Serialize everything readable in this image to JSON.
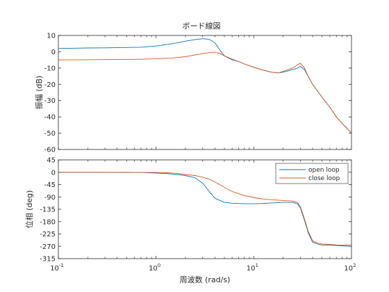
{
  "chart_data": {
    "type": "line",
    "title": "ボード線図",
    "xlabel": "周波数 (rad/s)",
    "x_scale": "log",
    "xlim": [
      0.1,
      100
    ],
    "x_ticks": [
      {
        "value": 0.1,
        "base": "10",
        "exp": "-1"
      },
      {
        "value": 1,
        "base": "10",
        "exp": "0"
      },
      {
        "value": 10,
        "base": "10",
        "exp": "1"
      },
      {
        "value": 100,
        "base": "10",
        "exp": "2"
      }
    ],
    "colors": {
      "open": "#0072BD",
      "close": "#D95319"
    },
    "legend_position": "top-right",
    "panels": [
      {
        "id": "magnitude",
        "ylabel": "振幅 (dB)",
        "ylim": [
          -60,
          10
        ],
        "yticks": [
          10,
          0,
          -10,
          -20,
          -30,
          -40,
          -50,
          -60
        ],
        "series": [
          {
            "name": "open loop",
            "color": "#0072BD",
            "x": [
              0.1,
              0.15,
              0.2,
              0.3,
              0.5,
              0.7,
              1.0,
              1.5,
              2.0,
              2.5,
              3.0,
              3.5,
              4.0,
              4.5,
              5.0,
              6.0,
              7.0,
              8.0,
              10,
              12,
              15,
              18,
              20,
              25,
              28,
              30,
              33,
              36,
              40,
              50,
              60,
              70,
              80,
              90,
              100
            ],
            "y": [
              2.0,
              2.2,
              2.3,
              2.4,
              2.6,
              2.8,
              3.5,
              5.0,
              6.5,
              7.5,
              8.0,
              7.6,
              5.5,
              1.0,
              -2.5,
              -5.0,
              -6.0,
              -7.5,
              -9.5,
              -11.0,
              -12.5,
              -13.0,
              -12.5,
              -11.0,
              -10.0,
              -9.0,
              -11.0,
              -15.0,
              -20.0,
              -28.0,
              -34.0,
              -40.0,
              -44.0,
              -47.0,
              -50.0
            ]
          },
          {
            "name": "close loop",
            "color": "#D95319",
            "x": [
              0.1,
              0.15,
              0.2,
              0.3,
              0.5,
              0.7,
              1.0,
              1.5,
              2.0,
              2.5,
              3.0,
              3.5,
              4.0,
              4.5,
              5.0,
              6.0,
              7.0,
              8.0,
              10,
              12,
              15,
              18,
              20,
              25,
              28,
              30,
              33,
              36,
              40,
              50,
              60,
              70,
              80,
              90,
              100
            ],
            "y": [
              -5.0,
              -5.0,
              -4.9,
              -4.8,
              -4.7,
              -4.6,
              -4.4,
              -3.8,
              -3.0,
              -2.0,
              -1.2,
              -0.5,
              -0.3,
              -1.0,
              -2.5,
              -4.5,
              -6.0,
              -7.5,
              -9.5,
              -11.0,
              -12.5,
              -13.0,
              -12.0,
              -10.0,
              -8.0,
              -7.0,
              -10.0,
              -15.0,
              -20.0,
              -28.0,
              -34.0,
              -40.0,
              -44.0,
              -47.0,
              -50.0
            ]
          }
        ]
      },
      {
        "id": "phase",
        "ylabel": "位相 (deg)",
        "ylim": [
          -315,
          45
        ],
        "yticks": [
          45,
          0,
          -45,
          -90,
          -135,
          -180,
          -225,
          -270,
          -315
        ],
        "legend": true,
        "series": [
          {
            "name": "open loop",
            "color": "#0072BD",
            "x": [
              0.1,
              0.15,
              0.2,
              0.3,
              0.5,
              0.7,
              1.0,
              1.3,
              1.6,
              2.0,
              2.5,
              3.0,
              3.5,
              4.0,
              5.0,
              6.0,
              8.0,
              10,
              12,
              15,
              20,
              25,
              28,
              30,
              33,
              36,
              40,
              45,
              50,
              60,
              70,
              80,
              100
            ],
            "y": [
              0,
              0,
              0,
              0,
              -1,
              -1,
              -3,
              -5,
              -8,
              -12,
              -20,
              -40,
              -70,
              -95,
              -110,
              -113,
              -115,
              -115,
              -114,
              -112,
              -110,
              -110,
              -115,
              -130,
              -175,
              -220,
              -255,
              -262,
              -265,
              -266,
              -267,
              -268,
              -270
            ]
          },
          {
            "name": "close loop",
            "color": "#D95319",
            "x": [
              0.1,
              0.15,
              0.2,
              0.3,
              0.5,
              0.7,
              1.0,
              1.3,
              1.6,
              2.0,
              2.5,
              3.0,
              3.5,
              4.0,
              5.0,
              6.0,
              8.0,
              10,
              12,
              15,
              20,
              25,
              28,
              30,
              33,
              36,
              40,
              45,
              50,
              60,
              70,
              80,
              100
            ],
            "y": [
              0,
              0,
              0,
              0,
              0,
              -1,
              -1,
              -2,
              -4,
              -8,
              -12,
              -18,
              -25,
              -35,
              -55,
              -70,
              -85,
              -92,
              -97,
              -100,
              -103,
              -105,
              -110,
              -125,
              -170,
              -215,
              -250,
              -258,
              -262,
              -263,
              -265,
              -266,
              -265
            ]
          }
        ]
      }
    ]
  }
}
